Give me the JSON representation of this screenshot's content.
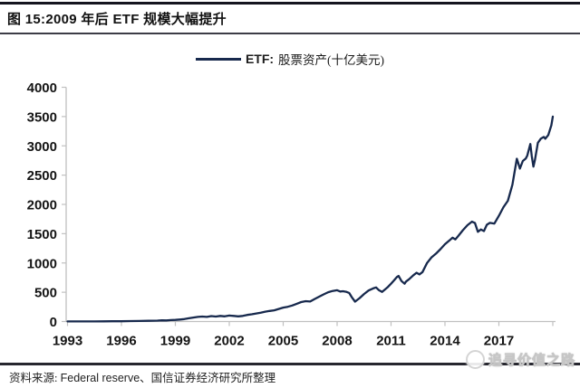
{
  "header": {
    "title": "图 15:2009 年后 ETF 规模大幅提升"
  },
  "legend": {
    "prefix": "ETF:",
    "label": "股票资产(十亿美元)"
  },
  "footer": {
    "source_label": "资料来源:",
    "source_text": "Federal reserve、国信证券经济研究所整理",
    "watermark": "追寻价值之路"
  },
  "colors": {
    "line": "#17294d",
    "axis": "#c0c0c0",
    "tick_text": "#141414",
    "rule": "#26262e"
  },
  "chart_data": {
    "type": "line",
    "title": "2009 年后 ETF 规模大幅提升",
    "xlabel": "",
    "ylabel": "ETF:股票资产(十亿美元)",
    "ylim": [
      0,
      4000
    ],
    "y_ticks": [
      0,
      500,
      1000,
      1500,
      2000,
      2500,
      3000,
      3500,
      4000
    ],
    "x_tick_years": [
      1993,
      1996,
      1999,
      2002,
      2005,
      2008,
      2011,
      2014,
      2017
    ],
    "x_tick_labels": [
      "1993",
      "1996",
      "1999",
      "2002",
      "2005",
      "2008",
      "2011",
      "2014",
      "2017"
    ],
    "x_axis_end_tick_year": 2020,
    "grid": false,
    "legend_position": "top-center",
    "series": [
      {
        "name": "ETF:股票资产(十亿美元)",
        "points": [
          [
            1993.0,
            1
          ],
          [
            1993.5,
            1
          ],
          [
            1994.0,
            2
          ],
          [
            1994.5,
            2
          ],
          [
            1995.0,
            3
          ],
          [
            1995.5,
            4
          ],
          [
            1996.0,
            5
          ],
          [
            1996.5,
            7
          ],
          [
            1997.0,
            9
          ],
          [
            1997.5,
            12
          ],
          [
            1998.0,
            16
          ],
          [
            1998.25,
            20
          ],
          [
            1998.5,
            18
          ],
          [
            1998.75,
            24
          ],
          [
            1999.0,
            28
          ],
          [
            1999.25,
            34
          ],
          [
            1999.5,
            42
          ],
          [
            1999.75,
            55
          ],
          [
            2000.0,
            68
          ],
          [
            2000.25,
            78
          ],
          [
            2000.5,
            85
          ],
          [
            2000.75,
            78
          ],
          [
            2001.0,
            92
          ],
          [
            2001.25,
            85
          ],
          [
            2001.5,
            95
          ],
          [
            2001.75,
            88
          ],
          [
            2002.0,
            102
          ],
          [
            2002.25,
            95
          ],
          [
            2002.5,
            88
          ],
          [
            2002.75,
            96
          ],
          [
            2003.0,
            112
          ],
          [
            2003.25,
            124
          ],
          [
            2003.5,
            138
          ],
          [
            2003.75,
            152
          ],
          [
            2004.0,
            168
          ],
          [
            2004.25,
            180
          ],
          [
            2004.5,
            192
          ],
          [
            2004.75,
            214
          ],
          [
            2005.0,
            238
          ],
          [
            2005.25,
            252
          ],
          [
            2005.5,
            274
          ],
          [
            2005.75,
            302
          ],
          [
            2006.0,
            332
          ],
          [
            2006.25,
            348
          ],
          [
            2006.5,
            342
          ],
          [
            2006.75,
            384
          ],
          [
            2007.0,
            424
          ],
          [
            2007.25,
            464
          ],
          [
            2007.5,
            500
          ],
          [
            2007.75,
            522
          ],
          [
            2008.0,
            535
          ],
          [
            2008.17,
            512
          ],
          [
            2008.33,
            518
          ],
          [
            2008.5,
            508
          ],
          [
            2008.67,
            488
          ],
          [
            2008.83,
            408
          ],
          [
            2009.0,
            340
          ],
          [
            2009.25,
            400
          ],
          [
            2009.5,
            470
          ],
          [
            2009.75,
            530
          ],
          [
            2010.0,
            565
          ],
          [
            2010.17,
            582
          ],
          [
            2010.33,
            535
          ],
          [
            2010.5,
            505
          ],
          [
            2010.67,
            548
          ],
          [
            2010.83,
            592
          ],
          [
            2011.0,
            645
          ],
          [
            2011.17,
            705
          ],
          [
            2011.33,
            762
          ],
          [
            2011.42,
            778
          ],
          [
            2011.58,
            692
          ],
          [
            2011.75,
            645
          ],
          [
            2011.83,
            682
          ],
          [
            2012.0,
            722
          ],
          [
            2012.25,
            792
          ],
          [
            2012.42,
            832
          ],
          [
            2012.58,
            805
          ],
          [
            2012.75,
            845
          ],
          [
            2013.0,
            1000
          ],
          [
            2013.25,
            1095
          ],
          [
            2013.5,
            1160
          ],
          [
            2013.75,
            1235
          ],
          [
            2014.0,
            1320
          ],
          [
            2014.25,
            1385
          ],
          [
            2014.42,
            1432
          ],
          [
            2014.58,
            1402
          ],
          [
            2014.75,
            1465
          ],
          [
            2015.0,
            1560
          ],
          [
            2015.25,
            1645
          ],
          [
            2015.5,
            1705
          ],
          [
            2015.67,
            1682
          ],
          [
            2015.83,
            1532
          ],
          [
            2016.0,
            1572
          ],
          [
            2016.17,
            1545
          ],
          [
            2016.33,
            1652
          ],
          [
            2016.5,
            1685
          ],
          [
            2016.75,
            1672
          ],
          [
            2017.0,
            1805
          ],
          [
            2017.25,
            1952
          ],
          [
            2017.5,
            2062
          ],
          [
            2017.75,
            2335
          ],
          [
            2018.0,
            2780
          ],
          [
            2018.08,
            2705
          ],
          [
            2018.17,
            2612
          ],
          [
            2018.33,
            2742
          ],
          [
            2018.5,
            2785
          ],
          [
            2018.58,
            2832
          ],
          [
            2018.75,
            3032
          ],
          [
            2018.83,
            2822
          ],
          [
            2018.92,
            2645
          ],
          [
            2019.0,
            2752
          ],
          [
            2019.17,
            3052
          ],
          [
            2019.33,
            3122
          ],
          [
            2019.5,
            3152
          ],
          [
            2019.58,
            3122
          ],
          [
            2019.75,
            3185
          ],
          [
            2019.92,
            3352
          ],
          [
            2020.0,
            3500
          ]
        ]
      }
    ]
  }
}
